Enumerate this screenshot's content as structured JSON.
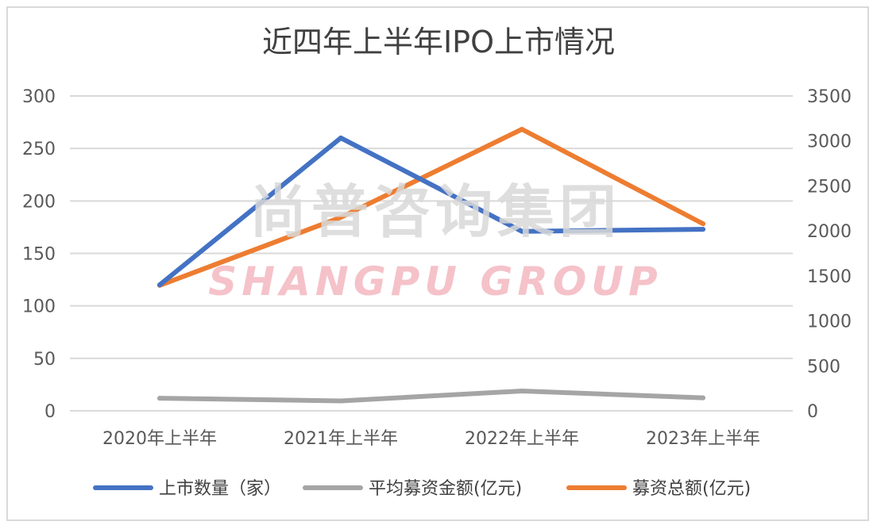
{
  "chart_data": {
    "type": "line",
    "title": "近四年上半年IPO上市情况",
    "categories": [
      "2020年上半年",
      "2021年上半年",
      "2022年上半年",
      "2023年上半年"
    ],
    "left_axis": {
      "ylim": [
        0,
        300
      ],
      "ticks": [
        "0",
        "50",
        "100",
        "150",
        "200",
        "250",
        "300"
      ]
    },
    "right_axis": {
      "ylim": [
        0,
        3500
      ],
      "ticks": [
        "0",
        "500",
        "1000",
        "1500",
        "2000",
        "2500",
        "3000",
        "3500"
      ]
    },
    "series": [
      {
        "name": "上市数量（家）",
        "axis": "left",
        "color": "#4472c4",
        "values": [
          120,
          260,
          171,
          173
        ]
      },
      {
        "name": "平均募资金额(亿元)",
        "axis": "right",
        "color": "#a5a5a5",
        "values": [
          140,
          110,
          220,
          145
        ]
      },
      {
        "name": "募资总额(亿元)",
        "axis": "right",
        "color": "#ed7d31",
        "values": [
          1395,
          2150,
          3130,
          2080
        ]
      }
    ],
    "grid": true,
    "legend_position": "bottom"
  },
  "watermark": {
    "cn": "尚普咨询集团",
    "en": "SHANGPU GROUP"
  }
}
